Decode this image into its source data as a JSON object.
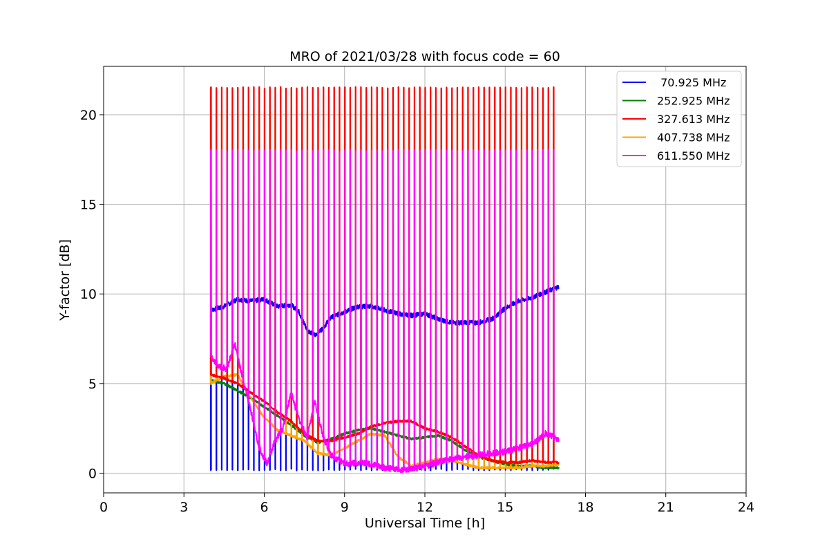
{
  "chart_data": {
    "type": "line",
    "title": "MRO of 2021/03/28 with focus code = 60",
    "xlabel": "Universal Time [h]",
    "ylabel": "Y-factor [dB]",
    "xlim": [
      0,
      24
    ],
    "ylim": [
      -1.1,
      22.7
    ],
    "xticks": [
      0,
      3,
      6,
      9,
      12,
      15,
      18,
      21,
      24
    ],
    "yticks": [
      0,
      5,
      10,
      15,
      20
    ],
    "grid": true,
    "legend_position": "top-right",
    "calibration": {
      "start_h": 4.0,
      "end_h": 17.0,
      "period_h": 0.2,
      "peak_values": {
        "327.613 MHz": 21.5,
        "407.738 MHz": 20.2,
        "611.550 MHz": 18.0,
        "70.925 MHz": 0.2
      }
    },
    "series": [
      {
        "name": " 70.925 MHz",
        "color": "#0000ff",
        "x": [
          4.0,
          4.5,
          5.0,
          5.5,
          6.0,
          6.5,
          7.0,
          7.3,
          7.6,
          7.9,
          8.2,
          8.5,
          9.0,
          9.5,
          10.0,
          10.5,
          11.0,
          11.5,
          12.0,
          12.5,
          13.0,
          13.5,
          14.0,
          14.5,
          15.0,
          15.5,
          16.0,
          16.5,
          17.0
        ],
        "y": [
          9.1,
          9.3,
          9.7,
          9.6,
          9.7,
          9.3,
          9.4,
          9.0,
          8.0,
          7.7,
          8.1,
          8.7,
          9.0,
          9.3,
          9.3,
          9.1,
          8.9,
          8.8,
          8.9,
          8.6,
          8.4,
          8.4,
          8.4,
          8.6,
          9.2,
          9.6,
          9.8,
          10.1,
          10.4
        ]
      },
      {
        "name": "252.925 MHz",
        "color": "#008000",
        "x": [
          4.0,
          4.5,
          5.0,
          5.5,
          6.0,
          6.5,
          7.0,
          7.5,
          8.0,
          8.5,
          9.0,
          9.5,
          10.0,
          10.5,
          11.0,
          11.5,
          12.0,
          12.5,
          13.0,
          13.5,
          14.0,
          14.5,
          15.0,
          15.5,
          16.0,
          16.5,
          17.0
        ],
        "y": [
          5.2,
          5.0,
          4.6,
          4.2,
          3.7,
          3.2,
          2.7,
          2.1,
          1.7,
          1.9,
          2.2,
          2.4,
          2.5,
          2.3,
          2.1,
          1.9,
          2.0,
          2.1,
          1.8,
          1.3,
          0.9,
          0.7,
          0.5,
          0.4,
          0.4,
          0.3,
          0.3
        ]
      },
      {
        "name": "327.613 MHz",
        "color": "#ff0000",
        "x": [
          4.0,
          4.5,
          5.0,
          5.5,
          6.0,
          6.5,
          7.0,
          7.5,
          8.0,
          8.5,
          9.0,
          9.5,
          10.0,
          10.5,
          11.0,
          11.5,
          12.0,
          12.5,
          13.0,
          13.5,
          14.0,
          14.5,
          15.0,
          15.5,
          16.0,
          16.5,
          17.0
        ],
        "y": [
          5.5,
          5.3,
          5.0,
          4.5,
          4.0,
          3.4,
          2.9,
          2.2,
          1.8,
          1.8,
          2.0,
          2.2,
          2.6,
          2.8,
          2.9,
          2.9,
          2.5,
          2.3,
          2.0,
          1.5,
          1.0,
          0.7,
          0.6,
          0.6,
          0.7,
          0.6,
          0.6
        ]
      },
      {
        "name": "407.738 MHz",
        "color": "#ffa500",
        "x": [
          4.0,
          4.5,
          5.0,
          5.5,
          6.0,
          6.5,
          7.0,
          7.5,
          8.0,
          8.5,
          9.0,
          9.5,
          10.0,
          10.5,
          11.0,
          11.5,
          12.0,
          12.5,
          13.0,
          13.5,
          14.0,
          14.5,
          15.0,
          15.5,
          16.0,
          16.5,
          17.0
        ],
        "y": [
          5.0,
          5.4,
          5.5,
          4.2,
          3.1,
          2.4,
          2.1,
          1.8,
          1.1,
          1.0,
          1.4,
          1.8,
          2.2,
          2.1,
          0.9,
          0.4,
          0.6,
          0.8,
          0.7,
          0.5,
          0.3,
          0.3,
          0.3,
          0.3,
          0.4,
          0.4,
          0.5
        ]
      },
      {
        "name": "611.550 MHz",
        "color": "#ff00ff",
        "x": [
          4.0,
          4.3,
          4.6,
          4.9,
          5.2,
          5.5,
          5.8,
          6.1,
          6.4,
          6.7,
          7.0,
          7.3,
          7.6,
          7.9,
          8.2,
          8.5,
          9.0,
          9.5,
          10.0,
          10.5,
          11.0,
          11.5,
          12.0,
          12.5,
          13.0,
          13.5,
          14.0,
          14.5,
          15.0,
          15.5,
          16.0,
          16.5,
          17.0
        ],
        "y": [
          6.5,
          6.0,
          5.8,
          7.2,
          5.2,
          3.5,
          1.5,
          0.5,
          1.8,
          2.5,
          4.5,
          3.0,
          2.0,
          4.0,
          2.0,
          1.0,
          0.5,
          0.6,
          0.5,
          0.3,
          0.2,
          0.2,
          0.4,
          0.6,
          0.8,
          0.9,
          1.0,
          1.1,
          1.2,
          1.4,
          1.6,
          2.2,
          1.9
        ]
      }
    ]
  }
}
